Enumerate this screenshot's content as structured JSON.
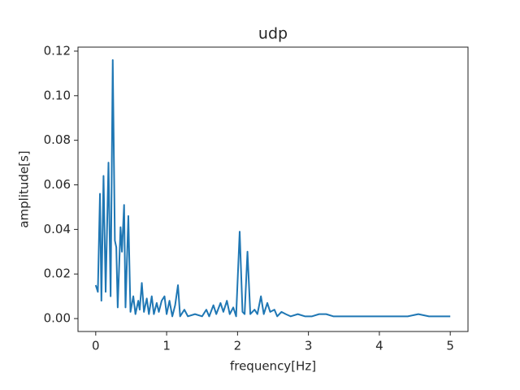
{
  "chart_data": {
    "type": "line",
    "title": "udp",
    "xlabel": "frequency[Hz]",
    "ylabel": "amplitude[s]",
    "color": "#1f77b4",
    "x": [
      0.0,
      0.03,
      0.06,
      0.08,
      0.11,
      0.14,
      0.18,
      0.21,
      0.24,
      0.27,
      0.29,
      0.31,
      0.35,
      0.37,
      0.4,
      0.42,
      0.46,
      0.49,
      0.53,
      0.56,
      0.6,
      0.62,
      0.65,
      0.68,
      0.72,
      0.75,
      0.79,
      0.82,
      0.86,
      0.89,
      0.93,
      0.97,
      1.0,
      1.04,
      1.08,
      1.12,
      1.16,
      1.19,
      1.25,
      1.3,
      1.4,
      1.5,
      1.56,
      1.6,
      1.66,
      1.7,
      1.76,
      1.8,
      1.85,
      1.89,
      1.94,
      1.98,
      2.03,
      2.07,
      2.1,
      2.14,
      2.18,
      2.24,
      2.28,
      2.33,
      2.37,
      2.42,
      2.46,
      2.52,
      2.56,
      2.62,
      2.68,
      2.75,
      2.85,
      2.95,
      3.05,
      3.15,
      3.25,
      3.35,
      3.5,
      3.65,
      3.8,
      3.95,
      4.1,
      4.25,
      4.4,
      4.55,
      4.7,
      4.85,
      5.0
    ],
    "values": [
      0.015,
      0.012,
      0.056,
      0.008,
      0.064,
      0.012,
      0.07,
      0.01,
      0.116,
      0.035,
      0.032,
      0.005,
      0.041,
      0.03,
      0.051,
      0.005,
      0.046,
      0.003,
      0.01,
      0.002,
      0.008,
      0.004,
      0.016,
      0.003,
      0.009,
      0.002,
      0.01,
      0.002,
      0.007,
      0.003,
      0.008,
      0.01,
      0.002,
      0.008,
      0.001,
      0.006,
      0.015,
      0.001,
      0.004,
      0.001,
      0.002,
      0.001,
      0.004,
      0.001,
      0.006,
      0.002,
      0.007,
      0.003,
      0.008,
      0.002,
      0.005,
      0.001,
      0.039,
      0.003,
      0.002,
      0.03,
      0.002,
      0.004,
      0.002,
      0.01,
      0.002,
      0.007,
      0.003,
      0.004,
      0.001,
      0.003,
      0.002,
      0.001,
      0.002,
      0.001,
      0.001,
      0.002,
      0.002,
      0.001,
      0.001,
      0.001,
      0.001,
      0.001,
      0.001,
      0.001,
      0.001,
      0.002,
      0.001,
      0.001,
      0.001
    ],
    "xlim": [
      -0.25,
      5.25
    ],
    "xticks": [
      0,
      1,
      2,
      3,
      4,
      5
    ],
    "ylim": [
      -0.0058,
      0.1218
    ],
    "yticks": [
      {
        "value": 0,
        "label": "0.00"
      },
      0.02,
      0.04,
      0.06,
      0.08,
      {
        "value": 0.1,
        "label": "0.10"
      },
      0.12
    ]
  }
}
